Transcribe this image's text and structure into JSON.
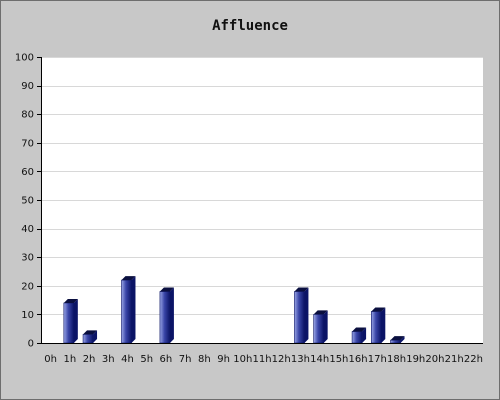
{
  "chart_data": {
    "type": "bar",
    "title": "Affluence",
    "xlabel": "",
    "ylabel": "",
    "ylim": [
      0,
      100
    ],
    "yticks": [
      0,
      10,
      20,
      30,
      40,
      50,
      60,
      70,
      80,
      90,
      100
    ],
    "categories": [
      "0h",
      "1h",
      "2h",
      "3h",
      "4h",
      "5h",
      "6h",
      "7h",
      "8h",
      "9h",
      "10h",
      "11h",
      "12h",
      "13h",
      "14h",
      "15h",
      "16h",
      "17h",
      "18h",
      "19h",
      "20h",
      "21h",
      "22h"
    ],
    "values": [
      0,
      14,
      3,
      0,
      22,
      0,
      18,
      0,
      0,
      0,
      0,
      0,
      0,
      18,
      10,
      0,
      4,
      11,
      1,
      0,
      0,
      0,
      0
    ],
    "grid": true,
    "colors": {
      "bar_light": "#9aa6e6",
      "bar_mid": "#3a46a8",
      "bar_dark": "#0b1466",
      "bar_top": "#0a0f3f",
      "plot_bg": "#ffffff",
      "grid": "#d8d8d8",
      "axis": "#000000",
      "frame": "#c8c8c8"
    }
  }
}
